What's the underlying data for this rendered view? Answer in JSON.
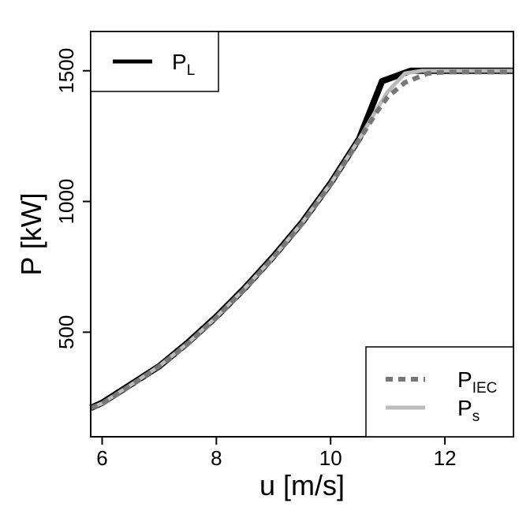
{
  "chart_data": {
    "type": "line",
    "title": "",
    "xlabel": "u [m/s]",
    "ylabel": "P [kW]",
    "xlim": [
      5.8,
      13.2
    ],
    "ylim": [
      100,
      1650
    ],
    "x_ticks": [
      6,
      8,
      10,
      12
    ],
    "y_ticks": [
      500,
      1000,
      1500
    ],
    "x_tick_labels": [
      "6",
      "8",
      "10",
      "12"
    ],
    "y_tick_labels": [
      "500",
      "1000",
      "1500"
    ],
    "grid": false,
    "series": [
      {
        "name": "P_L",
        "label_main": "P",
        "label_sub": "L",
        "color": "#000000",
        "style": "solid",
        "legend_position": "top-left",
        "x": [
          5.8,
          6.0,
          6.5,
          7.0,
          7.5,
          8.0,
          8.5,
          9.0,
          9.5,
          10.0,
          10.5,
          10.9,
          11.4,
          12.0,
          13.2
        ],
        "y": [
          210,
          230,
          300,
          370,
          460,
          560,
          670,
          790,
          920,
          1070,
          1240,
          1460,
          1500,
          1500,
          1500
        ]
      },
      {
        "name": "P_IEC",
        "label_main": "P",
        "label_sub": "IEC",
        "color": "#777777",
        "style": "dashed",
        "legend_position": "bottom-right",
        "x": [
          5.8,
          6.0,
          6.5,
          7.0,
          7.5,
          8.0,
          8.5,
          9.0,
          9.5,
          10.0,
          10.5,
          10.8,
          11.0,
          11.3,
          11.7,
          12.0,
          13.2
        ],
        "y": [
          210,
          225,
          295,
          370,
          455,
          555,
          665,
          785,
          915,
          1065,
          1235,
          1340,
          1400,
          1455,
          1490,
          1495,
          1495
        ]
      },
      {
        "name": "P_s",
        "label_main": "P",
        "label_sub": "s",
        "color": "#bbbbbb",
        "style": "solid",
        "legend_position": "bottom-right",
        "x": [
          5.8,
          6.0,
          6.5,
          7.0,
          7.5,
          8.0,
          8.5,
          9.0,
          9.5,
          10.0,
          10.5,
          10.8,
          11.0,
          11.3,
          11.6,
          12.0,
          13.2
        ],
        "y": [
          210,
          228,
          298,
          370,
          458,
          558,
          668,
          788,
          918,
          1068,
          1238,
          1350,
          1420,
          1490,
          1500,
          1500,
          1500
        ]
      }
    ]
  }
}
